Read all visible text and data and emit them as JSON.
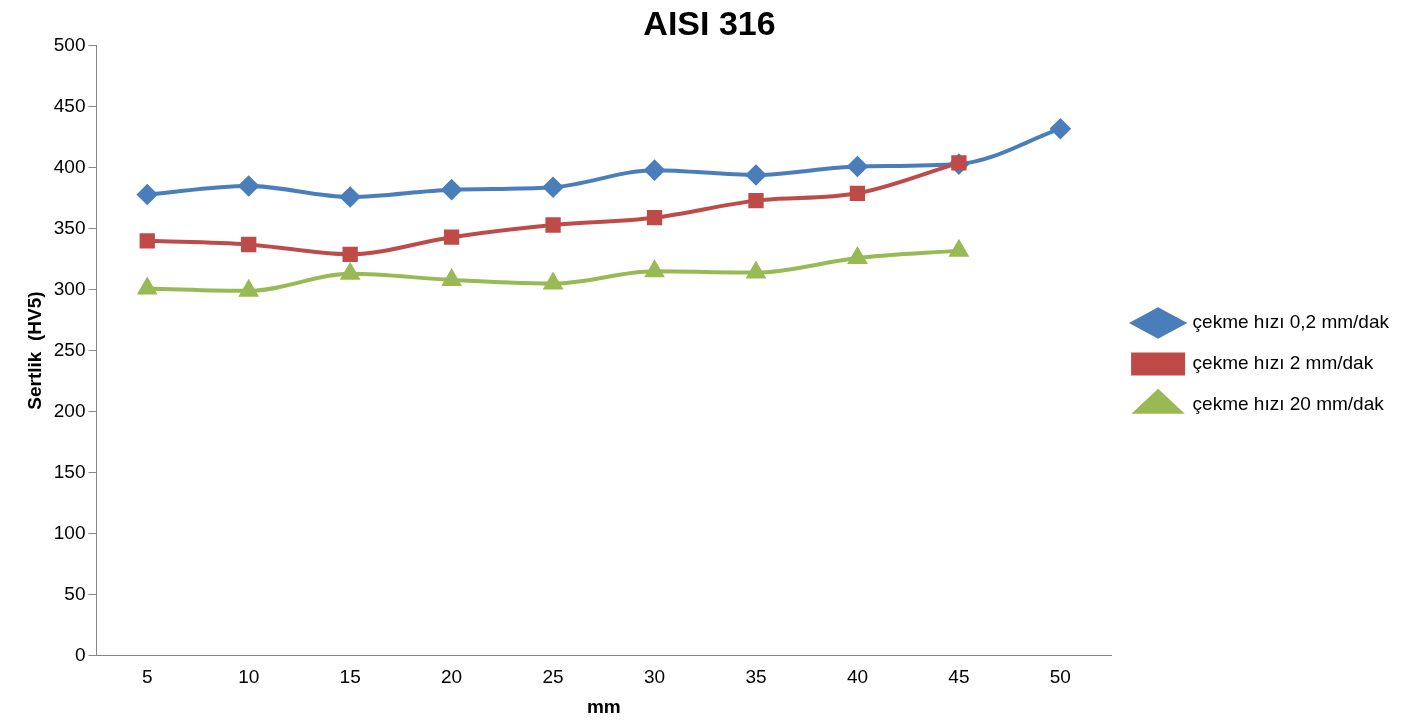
{
  "chart_data": {
    "type": "line",
    "title": "AISI 316",
    "xlabel": "mm",
    "ylabel": "Sertlik  (HV5)",
    "categories": [
      "5",
      "10",
      "15",
      "20",
      "25",
      "30",
      "35",
      "40",
      "45",
      "50"
    ],
    "series": [
      {
        "name": "çekme hızı 0,2 mm/dak",
        "color": "#4a7ebb",
        "marker": "diamond",
        "values": [
          378,
          385,
          376,
          382,
          384,
          398,
          394,
          401,
          403,
          432
        ]
      },
      {
        "name": "çekme hızı 2 mm/dak",
        "color": "#be4b48",
        "marker": "square",
        "values": [
          340,
          337,
          329,
          343,
          353,
          359,
          373,
          379,
          404,
          null
        ]
      },
      {
        "name": "çekme hızı 20 mm/dak",
        "color": "#98b954",
        "marker": "triangle",
        "values": [
          301,
          299,
          313,
          308,
          305,
          315,
          314,
          326,
          332,
          null
        ]
      }
    ],
    "ylim": [
      0,
      500
    ],
    "yticks": [
      0,
      50,
      100,
      150,
      200,
      250,
      300,
      350,
      400,
      450,
      500
    ],
    "grid": false,
    "legend": "right",
    "line_style": "solid"
  }
}
